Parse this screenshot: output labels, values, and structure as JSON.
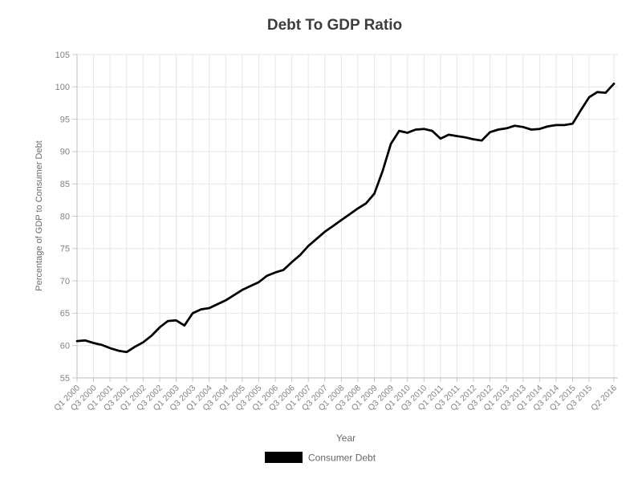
{
  "chart_data": {
    "type": "line",
    "title": "Debt To GDP Ratio",
    "xlabel": "Year",
    "ylabel": "Percentage of GDP to Consumer Debt",
    "legend": [
      {
        "label": "Consumer Debt",
        "color": "#000000"
      }
    ],
    "legend_position": "bottom",
    "grid": true,
    "ylim": [
      55,
      105
    ],
    "y_ticks": [
      55,
      60,
      65,
      70,
      75,
      80,
      85,
      90,
      95,
      100,
      105
    ],
    "x_tick_labels": [
      "Q1 2000",
      "Q3 2000",
      "Q1 2001",
      "Q3 2001",
      "Q1 2002",
      "Q3 2002",
      "Q1 2003",
      "Q3 2003",
      "Q1 2004",
      "Q3 2004",
      "Q1 2005",
      "Q3 2005",
      "Q1 2006",
      "Q3 2006",
      "Q1 2007",
      "Q3 2007",
      "Q1 2008",
      "Q3 2008",
      "Q1 2009",
      "Q3 2009",
      "Q1 2010",
      "Q3 2010",
      "Q1 2011",
      "Q3 2011",
      "Q1 2012",
      "Q3 2012",
      "Q1 2013",
      "Q3 2013",
      "Q1 2014",
      "Q3 2014",
      "Q1 2015",
      "Q3 2015",
      "Q2 2016"
    ],
    "x": [
      "Q1 2000",
      "Q2 2000",
      "Q3 2000",
      "Q4 2000",
      "Q1 2001",
      "Q2 2001",
      "Q3 2001",
      "Q4 2001",
      "Q1 2002",
      "Q2 2002",
      "Q3 2002",
      "Q4 2002",
      "Q1 2003",
      "Q2 2003",
      "Q3 2003",
      "Q4 2003",
      "Q1 2004",
      "Q2 2004",
      "Q3 2004",
      "Q4 2004",
      "Q1 2005",
      "Q2 2005",
      "Q3 2005",
      "Q4 2005",
      "Q1 2006",
      "Q2 2006",
      "Q3 2006",
      "Q4 2006",
      "Q1 2007",
      "Q2 2007",
      "Q3 2007",
      "Q4 2007",
      "Q1 2008",
      "Q2 2008",
      "Q3 2008",
      "Q4 2008",
      "Q1 2009",
      "Q2 2009",
      "Q3 2009",
      "Q4 2009",
      "Q1 2010",
      "Q2 2010",
      "Q3 2010",
      "Q4 2010",
      "Q1 2011",
      "Q2 2011",
      "Q3 2011",
      "Q4 2011",
      "Q1 2012",
      "Q2 2012",
      "Q3 2012",
      "Q4 2012",
      "Q1 2013",
      "Q2 2013",
      "Q3 2013",
      "Q4 2013",
      "Q1 2014",
      "Q2 2014",
      "Q3 2014",
      "Q4 2014",
      "Q1 2015",
      "Q2 2015",
      "Q3 2015",
      "Q4 2015",
      "Q1 2016",
      "Q2 2016"
    ],
    "series": [
      {
        "name": "Consumer Debt",
        "values": [
          60.7,
          60.8,
          60.4,
          60.1,
          59.6,
          59.2,
          59.0,
          59.8,
          60.5,
          61.5,
          62.8,
          63.8,
          63.9,
          63.1,
          65.0,
          65.6,
          65.8,
          66.4,
          67.0,
          67.8,
          68.6,
          69.2,
          69.8,
          70.8,
          71.3,
          71.7,
          72.9,
          74.0,
          75.4,
          76.5,
          77.6,
          78.5,
          79.4,
          80.3,
          81.2,
          82.0,
          83.5,
          87.0,
          91.2,
          93.2,
          92.9,
          93.4,
          93.5,
          93.2,
          92.0,
          92.6,
          92.4,
          92.2,
          91.9,
          91.7,
          93.0,
          93.4,
          93.6,
          94.0,
          93.8,
          93.4,
          93.5,
          93.9,
          94.1,
          94.1,
          94.3,
          96.4,
          98.4,
          99.2,
          99.1,
          100.5
        ]
      }
    ]
  },
  "colors": {
    "line": "#000000",
    "grid": "#e6e6e6",
    "axis": "#bcbcbc",
    "tick": "#c8c8c8",
    "title": "#3d3d3d",
    "tick_text": "#828282",
    "axis_title_text": "#6b6b6b",
    "legend_text": "#666666",
    "background": "#ffffff"
  }
}
